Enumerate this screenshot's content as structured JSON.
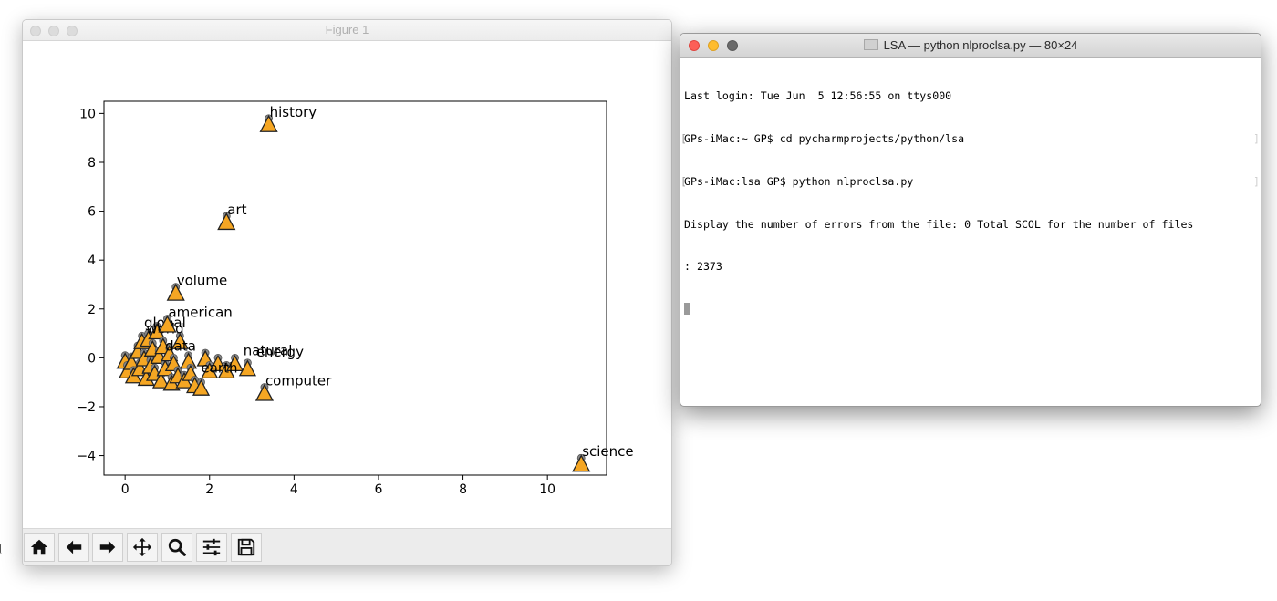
{
  "figure_window": {
    "title": "Figure 1",
    "toolbar": [
      {
        "name": "home-button",
        "icon": "home-icon"
      },
      {
        "name": "back-button",
        "icon": "arrow-left-icon"
      },
      {
        "name": "forward-button",
        "icon": "arrow-right-icon"
      },
      {
        "name": "pan-button",
        "icon": "move-icon"
      },
      {
        "name": "zoom-button",
        "icon": "magnifier-icon"
      },
      {
        "name": "configure-subplots-button",
        "icon": "sliders-icon"
      },
      {
        "name": "save-button",
        "icon": "floppy-disk-icon"
      }
    ]
  },
  "terminal_window": {
    "title": "LSA — python nlproclsa.py — 80×24",
    "lines": [
      "Last login: Tue Jun  5 12:56:55 on ttys000",
      "GPs-iMac:~ GP$ cd pycharmprojects/python/lsa",
      "GPs-iMac:lsa GP$ python nlproclsa.py",
      "Display the number of errors from the file: 0 Total SCOL for the number of files",
      ": 2373"
    ]
  },
  "chart_data": {
    "type": "scatter",
    "title": "",
    "xlabel": "",
    "ylabel": "",
    "xlim": [
      -0.5,
      11.4
    ],
    "ylim": [
      -4.8,
      10.5
    ],
    "xticks": [
      0,
      2,
      4,
      6,
      8,
      10
    ],
    "yticks": [
      -4,
      -2,
      0,
      2,
      4,
      6,
      8,
      10
    ],
    "grid": false,
    "colors": {
      "triangle_fill": "#f5a623",
      "triangle_edge": "#222222",
      "circle_fill": "#888888"
    },
    "labeled_points": [
      {
        "label": "history",
        "x": 3.4,
        "y": 9.8
      },
      {
        "label": "art",
        "x": 2.4,
        "y": 5.8
      },
      {
        "label": "volume",
        "x": 1.2,
        "y": 2.9
      },
      {
        "label": "american",
        "x": 1.0,
        "y": 1.6
      },
      {
        "label": "computer",
        "x": 3.3,
        "y": -1.2
      },
      {
        "label": "science",
        "x": 10.8,
        "y": -4.1
      }
    ],
    "cluster_points": [
      {
        "x": 0.0,
        "y": 0.1
      },
      {
        "x": 0.05,
        "y": -0.3
      },
      {
        "x": 0.15,
        "y": 0.05
      },
      {
        "x": 0.2,
        "y": -0.5
      },
      {
        "x": 0.3,
        "y": 0.5
      },
      {
        "x": 0.35,
        "y": -0.2
      },
      {
        "x": 0.4,
        "y": 0.9
      },
      {
        "x": 0.45,
        "y": 0.2
      },
      {
        "x": 0.5,
        "y": -0.6
      },
      {
        "x": 0.55,
        "y": 1.0
      },
      {
        "x": 0.6,
        "y": -0.1
      },
      {
        "x": 0.65,
        "y": 0.6
      },
      {
        "x": 0.7,
        "y": -0.4
      },
      {
        "x": 0.75,
        "y": 1.3
      },
      {
        "x": 0.8,
        "y": 0.3
      },
      {
        "x": 0.85,
        "y": -0.7
      },
      {
        "x": 0.9,
        "y": 0.7
      },
      {
        "x": 0.95,
        "y": -0.2
      },
      {
        "x": 1.05,
        "y": 0.4
      },
      {
        "x": 1.1,
        "y": -0.8
      },
      {
        "x": 1.15,
        "y": 0.0
      },
      {
        "x": 1.25,
        "y": -0.5
      },
      {
        "x": 1.3,
        "y": 0.9
      },
      {
        "x": 1.4,
        "y": -0.7
      },
      {
        "x": 1.5,
        "y": 0.1
      },
      {
        "x": 1.55,
        "y": -0.4
      },
      {
        "x": 1.65,
        "y": -0.9
      },
      {
        "x": 1.8,
        "y": -1.0
      },
      {
        "x": 1.9,
        "y": 0.2
      },
      {
        "x": 2.0,
        "y": -0.3
      },
      {
        "x": 2.2,
        "y": 0.0
      },
      {
        "x": 2.4,
        "y": -0.3
      },
      {
        "x": 2.6,
        "y": 0.0
      },
      {
        "x": 2.9,
        "y": -0.2
      }
    ],
    "cluster_labels": [
      {
        "text": "global",
        "x": 0.45,
        "y": 1.25
      },
      {
        "text": "world",
        "x": 0.5,
        "y": 1.0
      },
      {
        "text": "data",
        "x": 0.95,
        "y": 0.3
      },
      {
        "text": "earth",
        "x": 1.8,
        "y": -0.6
      },
      {
        "text": "natural",
        "x": 2.8,
        "y": 0.1
      },
      {
        "text": "energy",
        "x": 3.1,
        "y": 0.05
      }
    ]
  }
}
